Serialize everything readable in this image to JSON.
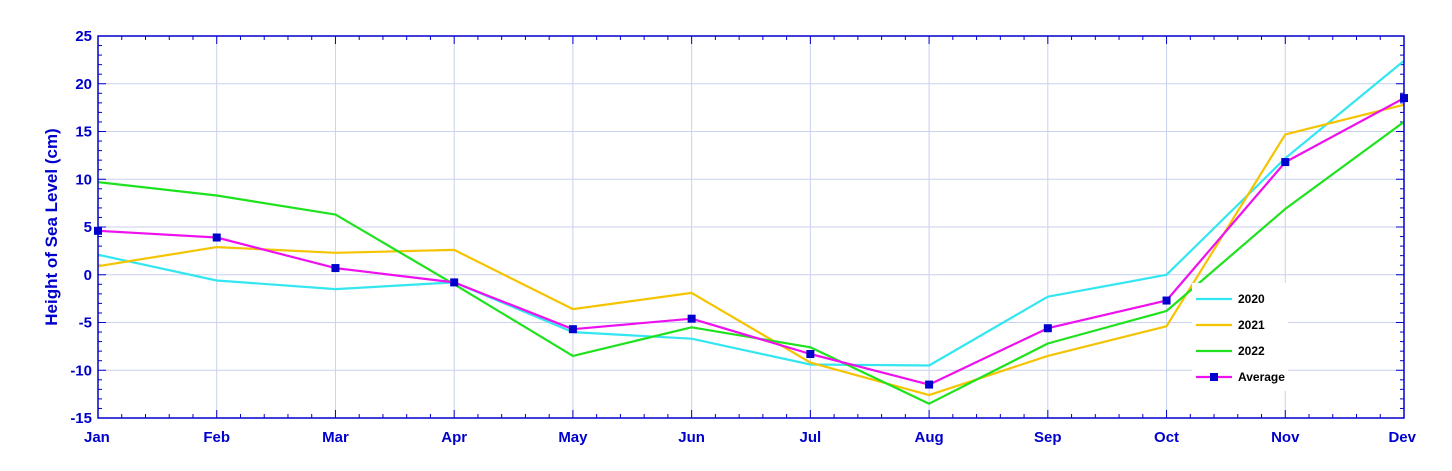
{
  "chart_data": {
    "type": "line",
    "title": "",
    "xlabel": "",
    "ylabel": "Height of Sea Level (cm)",
    "categories": [
      "Jan",
      "Feb",
      "Mar",
      "Apr",
      "May",
      "Jun",
      "Jul",
      "Aug",
      "Sep",
      "Oct",
      "Nov",
      "Dev"
    ],
    "ylim": [
      -15,
      25
    ],
    "yticks": [
      -15,
      -10,
      -5,
      0,
      5,
      10,
      15,
      20,
      25
    ],
    "grid": true,
    "legend_position": "bottom-right",
    "series": [
      {
        "name": "2020",
        "color": "#33e6f0",
        "marker": "none",
        "values": [
          2.1,
          -0.6,
          -1.5,
          -0.8,
          -6.0,
          -6.7,
          -9.4,
          -9.5,
          -2.3,
          0.0,
          12.2,
          22.4
        ]
      },
      {
        "name": "2021",
        "color": "#f5c400",
        "marker": "none",
        "values": [
          0.9,
          2.9,
          2.3,
          2.6,
          -3.6,
          -1.9,
          -9.2,
          -12.6,
          -8.5,
          -5.4,
          14.7,
          17.8
        ]
      },
      {
        "name": "2022",
        "color": "#1ee21e",
        "marker": "none",
        "values": [
          9.7,
          8.3,
          6.3,
          -1.0,
          -8.5,
          -5.5,
          -7.6,
          -13.5,
          -7.2,
          -3.8,
          6.9,
          16.0
        ]
      },
      {
        "name": "Average",
        "color": "#ee10ee",
        "marker": "square",
        "marker_color": "#0000cc",
        "values": [
          4.6,
          3.9,
          0.7,
          -0.8,
          -5.7,
          -4.6,
          -8.3,
          -11.5,
          -5.6,
          -2.7,
          11.8,
          18.5
        ]
      }
    ]
  }
}
